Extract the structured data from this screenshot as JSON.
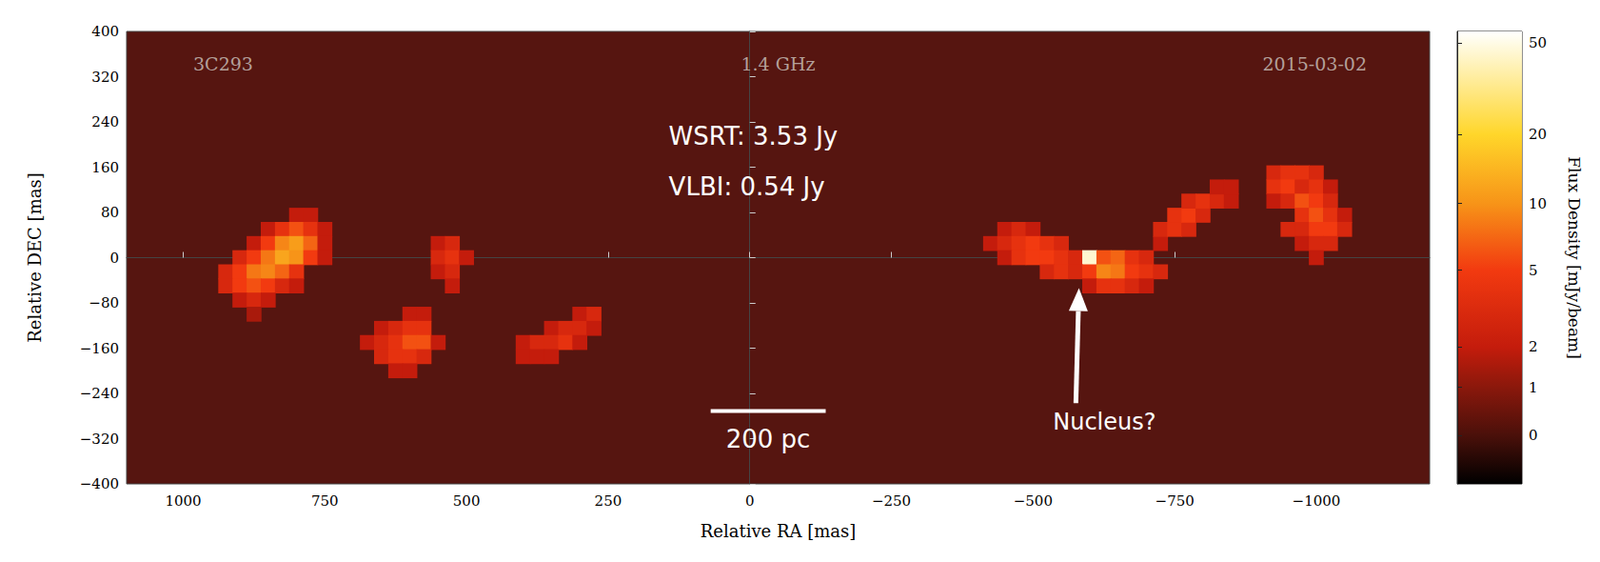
{
  "chart_data": {
    "type": "heatmap",
    "title": "3C293",
    "subtitle": "1.4 GHz",
    "date": "2015-03-02",
    "x_label": "Relative RA [mas]",
    "y_label": "Relative DEC [mas]",
    "xlim": [
      1100,
      -1200
    ],
    "xticks": [
      1000,
      750,
      500,
      250,
      0,
      {
        "value": -250,
        "label": "−250"
      },
      {
        "value": -500,
        "label": "−500"
      },
      {
        "value": -750,
        "label": "−750"
      },
      {
        "value": -1000,
        "label": "−1000"
      }
    ],
    "ylim": [
      -400,
      400
    ],
    "yticks": [
      400,
      320,
      240,
      160,
      80,
      0,
      {
        "value": -80,
        "label": "−80"
      },
      {
        "value": -160,
        "label": "−160"
      },
      {
        "value": -240,
        "label": "−240"
      },
      {
        "value": -320,
        "label": "−320"
      },
      {
        "value": -400,
        "label": "−400"
      }
    ],
    "cell_size": 25,
    "cells": [
      [
        800,
        75,
        2
      ],
      [
        775,
        75,
        2
      ],
      [
        850,
        50,
        2
      ],
      [
        825,
        50,
        4
      ],
      [
        800,
        50,
        6
      ],
      [
        775,
        50,
        4
      ],
      [
        750,
        50,
        2
      ],
      [
        875,
        25,
        2
      ],
      [
        850,
        25,
        5
      ],
      [
        825,
        25,
        9
      ],
      [
        800,
        25,
        11
      ],
      [
        775,
        25,
        7
      ],
      [
        750,
        25,
        2
      ],
      [
        900,
        0,
        3
      ],
      [
        875,
        0,
        5
      ],
      [
        850,
        0,
        8
      ],
      [
        825,
        0,
        12
      ],
      [
        800,
        0,
        10
      ],
      [
        775,
        0,
        5
      ],
      [
        750,
        0,
        2
      ],
      [
        925,
        -25,
        3
      ],
      [
        900,
        -25,
        5
      ],
      [
        875,
        -25,
        8
      ],
      [
        850,
        -25,
        9
      ],
      [
        825,
        -25,
        7
      ],
      [
        800,
        -25,
        4
      ],
      [
        925,
        -50,
        3
      ],
      [
        900,
        -50,
        5
      ],
      [
        875,
        -50,
        6
      ],
      [
        850,
        -50,
        5
      ],
      [
        825,
        -50,
        3
      ],
      [
        800,
        -50,
        2
      ],
      [
        900,
        -75,
        2
      ],
      [
        875,
        -75,
        3
      ],
      [
        850,
        -75,
        2
      ],
      [
        875,
        -100,
        1.5
      ],
      [
        550,
        25,
        2
      ],
      [
        525,
        25,
        3
      ],
      [
        550,
        0,
        3
      ],
      [
        525,
        0,
        4
      ],
      [
        500,
        0,
        2
      ],
      [
        550,
        -25,
        2
      ],
      [
        525,
        -25,
        3
      ],
      [
        525,
        -50,
        2
      ],
      [
        600,
        -100,
        2
      ],
      [
        575,
        -100,
        2
      ],
      [
        650,
        -125,
        2
      ],
      [
        625,
        -125,
        3
      ],
      [
        600,
        -125,
        4
      ],
      [
        575,
        -125,
        4
      ],
      [
        675,
        -150,
        2
      ],
      [
        650,
        -150,
        3
      ],
      [
        625,
        -150,
        4
      ],
      [
        600,
        -150,
        6
      ],
      [
        575,
        -150,
        6
      ],
      [
        550,
        -150,
        2
      ],
      [
        650,
        -175,
        3
      ],
      [
        625,
        -175,
        4
      ],
      [
        600,
        -175,
        4
      ],
      [
        575,
        -175,
        3
      ],
      [
        625,
        -200,
        2
      ],
      [
        600,
        -200,
        2
      ],
      [
        300,
        -100,
        2
      ],
      [
        275,
        -100,
        3
      ],
      [
        350,
        -125,
        2
      ],
      [
        325,
        -125,
        3
      ],
      [
        300,
        -125,
        3
      ],
      [
        275,
        -125,
        2
      ],
      [
        400,
        -150,
        2
      ],
      [
        375,
        -150,
        3
      ],
      [
        350,
        -150,
        3
      ],
      [
        325,
        -150,
        4
      ],
      [
        300,
        -150,
        2
      ],
      [
        400,
        -175,
        2
      ],
      [
        375,
        -175,
        2
      ],
      [
        350,
        -175,
        2
      ],
      [
        -450,
        50,
        2
      ],
      [
        -475,
        50,
        3
      ],
      [
        -500,
        50,
        2
      ],
      [
        -425,
        25,
        2
      ],
      [
        -450,
        25,
        3
      ],
      [
        -475,
        25,
        4
      ],
      [
        -500,
        25,
        5
      ],
      [
        -525,
        25,
        4
      ],
      [
        -550,
        25,
        3
      ],
      [
        -450,
        0,
        2
      ],
      [
        -475,
        0,
        4
      ],
      [
        -500,
        0,
        5
      ],
      [
        -525,
        0,
        5
      ],
      [
        -550,
        0,
        4
      ],
      [
        -575,
        0,
        3
      ],
      [
        -600,
        0,
        45
      ],
      [
        -625,
        0,
        6
      ],
      [
        -650,
        0,
        7
      ],
      [
        -675,
        0,
        4
      ],
      [
        -700,
        0,
        3
      ],
      [
        -525,
        -25,
        3
      ],
      [
        -550,
        -25,
        4
      ],
      [
        -575,
        -25,
        3
      ],
      [
        -600,
        -25,
        5
      ],
      [
        -625,
        -25,
        9
      ],
      [
        -650,
        -25,
        8
      ],
      [
        -675,
        -25,
        5
      ],
      [
        -700,
        -25,
        4
      ],
      [
        -725,
        -25,
        3
      ],
      [
        -600,
        -50,
        2
      ],
      [
        -625,
        -50,
        4
      ],
      [
        -650,
        -50,
        4
      ],
      [
        -675,
        -50,
        3
      ],
      [
        -700,
        -50,
        2
      ],
      [
        -725,
        25,
        2
      ],
      [
        -725,
        50,
        3
      ],
      [
        -750,
        50,
        4
      ],
      [
        -775,
        50,
        3
      ],
      [
        -750,
        75,
        4
      ],
      [
        -775,
        75,
        5
      ],
      [
        -800,
        75,
        3
      ],
      [
        -775,
        100,
        3
      ],
      [
        -800,
        100,
        4
      ],
      [
        -825,
        100,
        3
      ],
      [
        -850,
        100,
        2
      ],
      [
        -825,
        125,
        2
      ],
      [
        -850,
        125,
        2
      ],
      [
        -925,
        150,
        3
      ],
      [
        -950,
        150,
        4
      ],
      [
        -975,
        150,
        4
      ],
      [
        -1000,
        150,
        3
      ],
      [
        -925,
        125,
        4
      ],
      [
        -950,
        125,
        5
      ],
      [
        -975,
        125,
        3
      ],
      [
        -1000,
        125,
        4
      ],
      [
        -1025,
        125,
        2
      ],
      [
        -925,
        100,
        2
      ],
      [
        -950,
        100,
        3
      ],
      [
        -975,
        100,
        6
      ],
      [
        -1000,
        100,
        5
      ],
      [
        -1025,
        100,
        3
      ],
      [
        -975,
        75,
        4
      ],
      [
        -1000,
        75,
        6
      ],
      [
        -1025,
        75,
        4
      ],
      [
        -1050,
        75,
        2
      ],
      [
        -950,
        50,
        3
      ],
      [
        -975,
        50,
        3
      ],
      [
        -1000,
        50,
        5
      ],
      [
        -1025,
        50,
        5
      ],
      [
        -1050,
        50,
        3
      ],
      [
        -975,
        25,
        2
      ],
      [
        -1000,
        25,
        3
      ],
      [
        -1025,
        25,
        3
      ],
      [
        -1000,
        0,
        2
      ]
    ],
    "colorbar": {
      "label": "Flux Density [mJy/beam]",
      "range": [
        -1,
        56
      ],
      "ticks": [
        0,
        1,
        2,
        5,
        10,
        20,
        50
      ]
    },
    "annotations": [
      {
        "text": "WSRT: 3.53 Jy",
        "x": 143,
        "y": 215
      },
      {
        "text": "VLBI: 0.54 Jy",
        "x": 143,
        "y": 125
      },
      {
        "text": "Nucleus?",
        "x": -626,
        "y": -291,
        "arrow_to": [
          -581,
          -54
        ]
      }
    ],
    "scale_bar": {
      "label": "200 pc",
      "x": [
        69,
        -134
      ],
      "y": -271
    }
  }
}
